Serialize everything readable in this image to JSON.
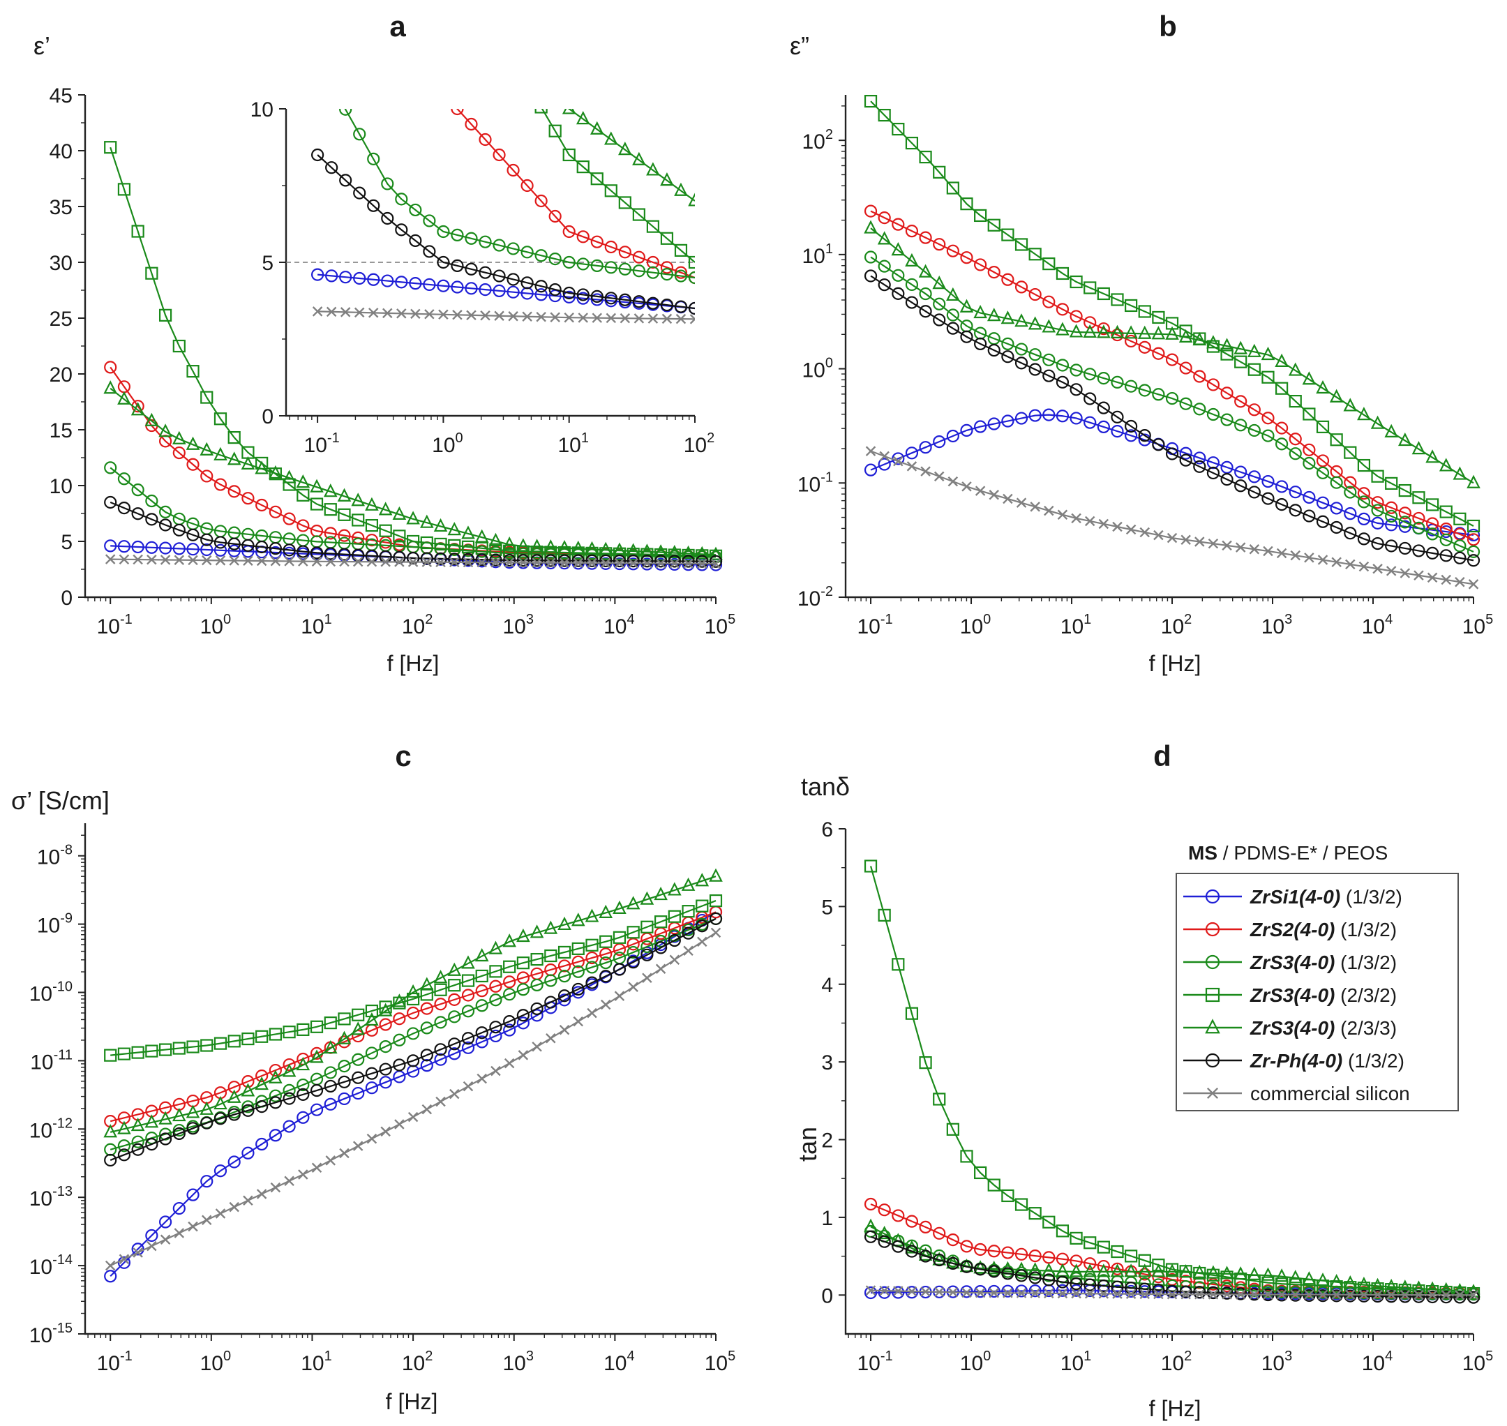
{
  "figure": {
    "legend_header_bold": "MS",
    "legend_header_rest": " / PDMS-E* / PEOS"
  },
  "series_styles": [
    {
      "id": "s1",
      "name_italic": "ZrSi1(4-0)",
      "ratio": "(1/3/2)",
      "color": "#1f1fd6",
      "marker": "circle"
    },
    {
      "id": "s2",
      "name_italic": "ZrS2(4-0)",
      "ratio": "(1/3/2)",
      "color": "#e01a1a",
      "marker": "circle"
    },
    {
      "id": "s3",
      "name_italic": "ZrS3(4-0)",
      "ratio": "(1/3/2)",
      "color": "#1a8a1a",
      "marker": "circle"
    },
    {
      "id": "s4",
      "name_italic": "ZrS3(4-0)",
      "ratio": "(2/3/2)",
      "color": "#1a8a1a",
      "marker": "square"
    },
    {
      "id": "s5",
      "name_italic": "ZrS3(4-0)",
      "ratio": "(2/3/3)",
      "color": "#1a8a1a",
      "marker": "triangle"
    },
    {
      "id": "s6",
      "name_italic": "Zr-Ph(4-0)",
      "ratio": "(1/3/2)",
      "color": "#111111",
      "marker": "circle"
    },
    {
      "id": "s7",
      "name_plain": "commercial silicon",
      "color": "#808080",
      "marker": "cross"
    }
  ],
  "chart_data": [
    {
      "panel": "a",
      "type": "line",
      "title": "a",
      "ylabel": "ε’",
      "xlabel": "f [Hz]",
      "xscale": "log",
      "yscale": "linear",
      "xlim": [
        0.0562,
        100000
      ],
      "ylim": [
        0,
        45
      ],
      "xticks": [
        0.1,
        1,
        10,
        100,
        1000,
        10000,
        100000
      ],
      "yticks": [
        0,
        5,
        10,
        15,
        20,
        25,
        30,
        35,
        40,
        45
      ],
      "series": [
        {
          "id": "s1",
          "values": [
            [
              0.1,
              4.6
            ],
            [
              100,
              3.5
            ],
            [
              1000,
              3.1
            ],
            [
              100000,
              2.9
            ]
          ]
        },
        {
          "id": "s2",
          "values": [
            [
              0.1,
              20.6
            ],
            [
              0.3,
              14.5
            ],
            [
              1,
              10.5
            ],
            [
              10,
              6.0
            ],
            [
              100,
              4.5
            ],
            [
              1000,
              4.0
            ],
            [
              100000,
              3.6
            ]
          ]
        },
        {
          "id": "s3",
          "values": [
            [
              0.1,
              11.6
            ],
            [
              0.39,
              7.3
            ],
            [
              1,
              6.0
            ],
            [
              10,
              5.0
            ],
            [
              100,
              4.5
            ],
            [
              1000,
              3.9
            ],
            [
              100000,
              3.6
            ]
          ]
        },
        {
          "id": "s4",
          "values": [
            [
              0.1,
              40.3
            ],
            [
              0.39,
              24.0
            ],
            [
              0.75,
              19.3
            ],
            [
              1,
              17.1
            ],
            [
              2,
              13.4
            ],
            [
              10,
              8.5
            ],
            [
              100,
              5.0
            ],
            [
              1000,
              4.1
            ],
            [
              100000,
              3.7
            ]
          ]
        },
        {
          "id": "s5",
          "values": [
            [
              0.1,
              18.7
            ],
            [
              0.39,
              14.5
            ],
            [
              1,
              13.0
            ],
            [
              10,
              10.0
            ],
            [
              100,
              7.0
            ],
            [
              1000,
              4.6
            ],
            [
              100000,
              3.8
            ]
          ]
        },
        {
          "id": "s6",
          "values": [
            [
              0.1,
              8.5
            ],
            [
              0.39,
              6.3
            ],
            [
              1,
              5.0
            ],
            [
              10,
              4.0
            ],
            [
              100,
              3.5
            ],
            [
              1000,
              3.3
            ],
            [
              100000,
              3.2
            ]
          ]
        },
        {
          "id": "s7",
          "values": [
            [
              0.1,
              3.4
            ],
            [
              10,
              3.2
            ],
            [
              1000,
              3.1
            ],
            [
              100000,
              3.0
            ]
          ]
        }
      ],
      "inset": {
        "xlim": [
          0.0562,
          100
        ],
        "ylim": [
          0,
          10
        ],
        "xticks": [
          0.1,
          1,
          10,
          100
        ],
        "yticks": [
          0,
          5,
          10
        ],
        "reference_line": 5
      }
    },
    {
      "panel": "b",
      "type": "line",
      "title": "b",
      "ylabel": "ε”",
      "xlabel": "f [Hz]",
      "xscale": "log",
      "yscale": "log",
      "xlim": [
        0.0562,
        100000
      ],
      "ylim": [
        0.01,
        250
      ],
      "xticks": [
        0.1,
        1,
        10,
        100,
        1000,
        10000,
        100000
      ],
      "yticks": [
        0.01,
        0.1,
        1,
        10,
        100
      ],
      "series": [
        {
          "id": "s1",
          "values": [
            [
              0.1,
              0.13
            ],
            [
              1,
              0.3
            ],
            [
              5,
              0.4
            ],
            [
              10,
              0.38
            ],
            [
              100,
              0.2
            ],
            [
              1000,
              0.1
            ],
            [
              10000,
              0.045
            ],
            [
              100000,
              0.035
            ]
          ]
        },
        {
          "id": "s2",
          "values": [
            [
              0.1,
              24
            ],
            [
              1,
              9
            ],
            [
              10,
              3
            ],
            [
              100,
              1.2
            ],
            [
              1000,
              0.35
            ],
            [
              10000,
              0.07
            ],
            [
              100000,
              0.032
            ]
          ]
        },
        {
          "id": "s3",
          "values": [
            [
              0.1,
              9.5
            ],
            [
              0.4,
              4.2
            ],
            [
              1,
              2.2
            ],
            [
              10,
              1.0
            ],
            [
              100,
              0.55
            ],
            [
              1000,
              0.25
            ],
            [
              10000,
              0.06
            ],
            [
              100000,
              0.025
            ]
          ]
        },
        {
          "id": "s4",
          "values": [
            [
              0.1,
              220
            ],
            [
              0.39,
              65
            ],
            [
              1,
              25
            ],
            [
              10,
              6
            ],
            [
              100,
              2.5
            ],
            [
              1000,
              0.8
            ],
            [
              10000,
              0.12
            ],
            [
              100000,
              0.042
            ]
          ]
        },
        {
          "id": "s5",
          "values": [
            [
              0.1,
              17
            ],
            [
              0.39,
              6.5
            ],
            [
              1,
              3.2
            ],
            [
              10,
              2.1
            ],
            [
              100,
              2.0
            ],
            [
              1000,
              1.3
            ],
            [
              10000,
              0.35
            ],
            [
              100000,
              0.1
            ]
          ]
        },
        {
          "id": "s6",
          "values": [
            [
              0.1,
              6.5
            ],
            [
              0.39,
              3
            ],
            [
              1,
              1.8
            ],
            [
              10,
              0.7
            ],
            [
              100,
              0.18
            ],
            [
              1000,
              0.07
            ],
            [
              10000,
              0.03
            ],
            [
              100000,
              0.021
            ]
          ]
        },
        {
          "id": "s7",
          "values": [
            [
              0.1,
              0.19
            ],
            [
              1,
              0.09
            ],
            [
              10,
              0.05
            ],
            [
              100,
              0.033
            ],
            [
              1000,
              0.025
            ],
            [
              10000,
              0.018
            ],
            [
              100000,
              0.013
            ]
          ]
        }
      ]
    },
    {
      "panel": "c",
      "type": "line",
      "title": "c",
      "ylabel": "σ’ [S/cm]",
      "xlabel": "f [Hz]",
      "xscale": "log",
      "yscale": "log",
      "xlim": [
        0.0562,
        100000
      ],
      "ylim": [
        1e-15,
        3e-08
      ],
      "xticks": [
        0.1,
        1,
        10,
        100,
        1000,
        10000,
        100000
      ],
      "yticks": [
        1e-15,
        1e-14,
        1e-13,
        1e-12,
        1e-11,
        1e-10,
        1e-09,
        1e-08
      ],
      "series": [
        {
          "id": "s1",
          "values": [
            [
              0.1,
              7e-15
            ],
            [
              1,
              2e-13
            ],
            [
              10,
              1.8e-12
            ],
            [
              100,
              7e-12
            ],
            [
              1000,
              3e-11
            ],
            [
              10000,
              2e-10
            ],
            [
              100000,
              1.5e-09
            ]
          ]
        },
        {
          "id": "s2",
          "values": [
            [
              0.1,
              1.3e-12
            ],
            [
              1,
              3e-12
            ],
            [
              10,
              1.2e-11
            ],
            [
              100,
              5e-11
            ],
            [
              1000,
              1.5e-10
            ],
            [
              10000,
              4e-10
            ],
            [
              100000,
              1.5e-09
            ]
          ]
        },
        {
          "id": "s3",
          "values": [
            [
              0.1,
              5e-13
            ],
            [
              1,
              1.3e-12
            ],
            [
              10,
              5e-12
            ],
            [
              100,
              2.5e-11
            ],
            [
              1000,
              1e-10
            ],
            [
              10000,
              3e-10
            ],
            [
              100000,
              1.2e-09
            ]
          ]
        },
        {
          "id": "s4",
          "values": [
            [
              0.1,
              1.2e-11
            ],
            [
              1,
              1.7e-11
            ],
            [
              10,
              3e-11
            ],
            [
              100,
              8e-11
            ],
            [
              1000,
              2.5e-10
            ],
            [
              10000,
              6e-10
            ],
            [
              100000,
              2.2e-09
            ]
          ]
        },
        {
          "id": "s5",
          "values": [
            [
              0.1,
              9e-13
            ],
            [
              1,
              2e-12
            ],
            [
              10,
              1e-11
            ],
            [
              100,
              1e-10
            ],
            [
              1000,
              6e-10
            ],
            [
              10000,
              1.6e-09
            ],
            [
              100000,
              5e-09
            ]
          ]
        },
        {
          "id": "s6",
          "values": [
            [
              0.1,
              3.5e-13
            ],
            [
              1,
              1.3e-12
            ],
            [
              10,
              3.5e-12
            ],
            [
              100,
              1e-11
            ],
            [
              1000,
              4e-11
            ],
            [
              10000,
              2e-10
            ],
            [
              100000,
              1.2e-09
            ]
          ]
        },
        {
          "id": "s7",
          "values": [
            [
              0.1,
              1e-14
            ],
            [
              1,
              5e-14
            ],
            [
              10,
              2.5e-13
            ],
            [
              100,
              1.5e-12
            ],
            [
              1000,
              1e-11
            ],
            [
              10000,
              8e-11
            ],
            [
              100000,
              7.5e-10
            ]
          ]
        }
      ]
    },
    {
      "panel": "d",
      "type": "line",
      "title": "d",
      "ylabel": "tanδ",
      "ylabel_axis": "tan",
      "xlabel": "f [Hz]",
      "xscale": "log",
      "yscale": "linear",
      "xlim": [
        0.0562,
        100000
      ],
      "ylim": [
        -0.5,
        6
      ],
      "xticks": [
        0.1,
        1,
        10,
        100,
        1000,
        10000,
        100000
      ],
      "yticks": [
        0,
        1,
        2,
        3,
        4,
        5,
        6
      ],
      "series": [
        {
          "id": "s1",
          "values": [
            [
              0.1,
              0.03
            ],
            [
              10,
              0.06
            ],
            [
              1000,
              0.02
            ],
            [
              100000,
              0.01
            ]
          ]
        },
        {
          "id": "s2",
          "values": [
            [
              0.1,
              1.17
            ],
            [
              0.39,
              0.85
            ],
            [
              1,
              0.6
            ],
            [
              10,
              0.45
            ],
            [
              100,
              0.2
            ],
            [
              1000,
              0.05
            ],
            [
              100000,
              0.02
            ]
          ]
        },
        {
          "id": "s3",
          "values": [
            [
              0.1,
              0.82
            ],
            [
              0.39,
              0.55
            ],
            [
              1,
              0.35
            ],
            [
              10,
              0.22
            ],
            [
              100,
              0.12
            ],
            [
              1000,
              0.04
            ],
            [
              100000,
              0.01
            ]
          ]
        },
        {
          "id": "s4",
          "values": [
            [
              0.1,
              5.52
            ],
            [
              0.39,
              2.78
            ],
            [
              0.75,
              1.97
            ],
            [
              1,
              1.68
            ],
            [
              2,
              1.33
            ],
            [
              10,
              0.75
            ],
            [
              100,
              0.33
            ],
            [
              1000,
              0.15
            ],
            [
              100000,
              0.02
            ]
          ]
        },
        {
          "id": "s5",
          "values": [
            [
              0.1,
              0.88
            ],
            [
              0.39,
              0.48
            ],
            [
              1,
              0.35
            ],
            [
              10,
              0.3
            ],
            [
              100,
              0.3
            ],
            [
              1000,
              0.25
            ],
            [
              10000,
              0.12
            ],
            [
              100000,
              0.04
            ]
          ]
        },
        {
          "id": "s6",
          "values": [
            [
              0.1,
              0.75
            ],
            [
              0.39,
              0.48
            ],
            [
              1,
              0.35
            ],
            [
              10,
              0.15
            ],
            [
              100,
              0.05
            ],
            [
              1000,
              0.0
            ],
            [
              100000,
              -0.03
            ]
          ]
        },
        {
          "id": "s7",
          "values": [
            [
              0.1,
              0.06
            ],
            [
              1,
              0.03
            ],
            [
              100,
              0.01
            ],
            [
              100000,
              0.0
            ]
          ]
        }
      ]
    }
  ]
}
